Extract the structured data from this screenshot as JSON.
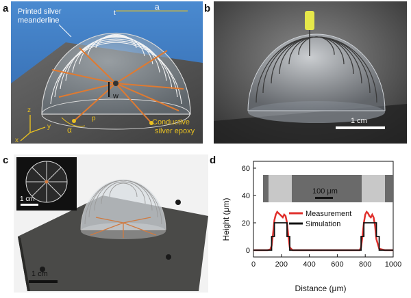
{
  "panel_labels": {
    "a": "a",
    "b": "b",
    "c": "c",
    "d": "d"
  },
  "panel_a": {
    "label_meander_line1": "Printed silver",
    "label_meander_line2": "meanderline",
    "label_a": "a",
    "label_t": "t",
    "label_w": "w",
    "label_p": "p",
    "label_alpha": "α",
    "label_epoxy_line1": "Conductive",
    "label_epoxy_line2": "silver epoxy",
    "axis_z": "z",
    "axis_y": "y",
    "axis_x": "x",
    "colors": {
      "background": "#3a78c0",
      "ground": "#5a5a5a",
      "accent": "#e8c020",
      "feed": "#e07a30"
    }
  },
  "panel_b": {
    "scalebar_label": "1 cm"
  },
  "panel_c": {
    "inset_scalebar_label": "1 cm",
    "scalebar_label": "1 cm"
  },
  "chart_data": {
    "type": "line",
    "xlabel": "Distance (μm)",
    "ylabel": "Height (μm)",
    "xlim": [
      0,
      1000
    ],
    "ylim": [
      -5,
      65
    ],
    "xticks": [
      0,
      200,
      400,
      600,
      800,
      1000
    ],
    "yticks": [
      0,
      20,
      40,
      60
    ],
    "legend_position": "center",
    "inset_scalebar_label": "100 μm",
    "series": [
      {
        "name": "Measurement",
        "color": "#e0302c",
        "x": [
          0,
          60,
          100,
          120,
          130,
          140,
          150,
          160,
          170,
          180,
          190,
          200,
          210,
          220,
          230,
          240,
          250,
          260,
          280,
          400,
          600,
          720,
          760,
          770,
          780,
          790,
          800,
          810,
          820,
          830,
          840,
          850,
          860,
          870,
          880,
          900,
          940,
          1000
        ],
        "y": [
          0,
          0,
          0,
          0.5,
          3,
          12,
          22,
          26,
          28,
          27,
          26,
          25,
          24,
          26,
          25,
          20,
          10,
          2,
          0,
          0,
          0,
          0,
          0,
          2,
          10,
          20,
          26,
          28,
          27,
          25,
          24,
          26,
          24,
          18,
          8,
          1,
          0,
          0
        ]
      },
      {
        "name": "Simulation",
        "color": "#111111",
        "x": [
          0,
          130,
          130,
          150,
          150,
          240,
          240,
          260,
          260,
          770,
          770,
          790,
          790,
          880,
          880,
          900,
          900,
          1000
        ],
        "y": [
          0,
          0,
          10,
          10,
          20,
          20,
          10,
          10,
          0,
          0,
          10,
          10,
          20,
          20,
          10,
          10,
          0,
          0
        ]
      }
    ]
  }
}
